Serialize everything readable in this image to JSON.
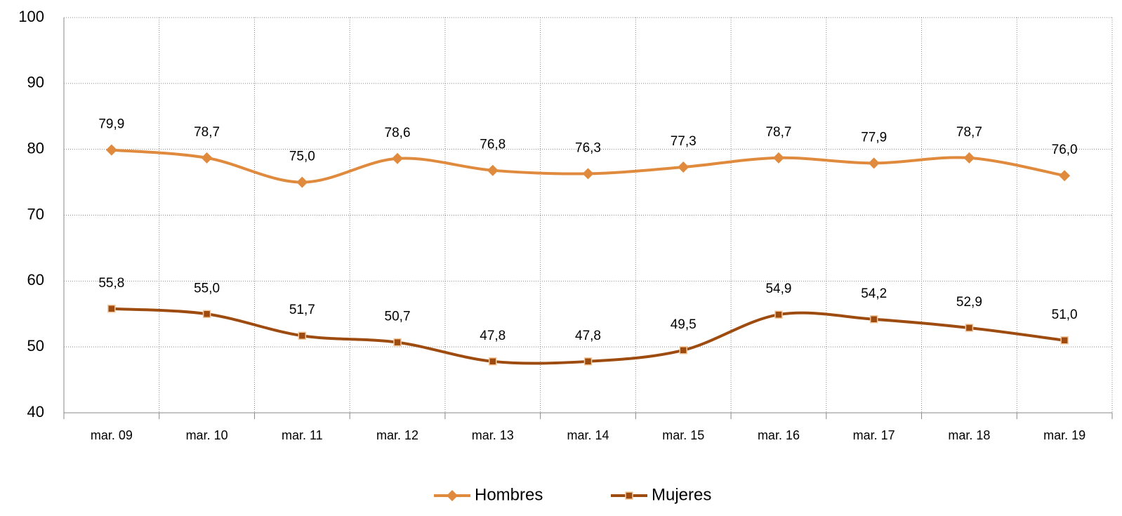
{
  "chart_data": {
    "type": "line",
    "categories": [
      "mar. 09",
      "mar. 10",
      "mar. 11",
      "mar. 12",
      "mar. 13",
      "mar. 14",
      "mar. 15",
      "mar. 16",
      "mar. 17",
      "mar. 18",
      "mar. 19"
    ],
    "series": [
      {
        "name": "Hombres",
        "color": "#e08a3e",
        "marker": "diamond",
        "values": [
          79.9,
          78.7,
          75.0,
          78.6,
          76.8,
          76.3,
          77.3,
          78.7,
          77.9,
          78.7,
          76.0
        ],
        "value_labels": [
          "79,9",
          "78,7",
          "75,0",
          "78,6",
          "76,8",
          "76,3",
          "77,3",
          "78,7",
          "77,9",
          "78,7",
          "76,0"
        ]
      },
      {
        "name": "Mujeres",
        "color": "#9e4b10",
        "marker": "square",
        "values": [
          55.8,
          55.0,
          51.7,
          50.7,
          47.8,
          47.8,
          49.5,
          54.9,
          54.2,
          52.9,
          51.0
        ],
        "value_labels": [
          "55,8",
          "55,0",
          "51,7",
          "50,7",
          "47,8",
          "47,8",
          "49,5",
          "54,9",
          "54,2",
          "52,9",
          "51,0"
        ]
      }
    ],
    "ylim": [
      40,
      100
    ],
    "yticks": [
      40,
      50,
      60,
      70,
      80,
      90,
      100
    ],
    "grid": true,
    "smooth": true,
    "legend": "bottom"
  }
}
